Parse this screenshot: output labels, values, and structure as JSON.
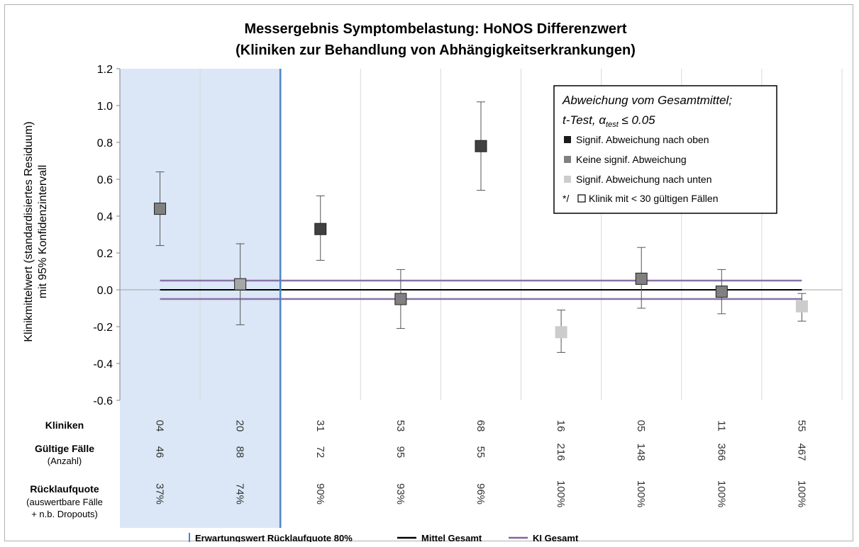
{
  "chart_data": {
    "type": "scatter",
    "title": [
      "Messergebnis Symptombelastung: HoNOS Differenzwert",
      "(Kliniken zur Behandlung von Abhängigkeitserkrankungen)"
    ],
    "ylabel": [
      "Klinikmittelwert (standardisiertes Residuum)",
      "mit 95% Konfidenzintervall"
    ],
    "ylim": [
      -0.6,
      1.2
    ],
    "yticks": [
      "1.2",
      "1.0",
      "0.8",
      "0.6",
      "0.4",
      "0.2",
      "0.0",
      "-0.2",
      "-0.4",
      "-0.6"
    ],
    "ytick_values": [
      1.2,
      1.0,
      0.8,
      0.6,
      0.4,
      0.2,
      0.0,
      -0.2,
      -0.4,
      -0.6
    ],
    "mean_total": 0.0,
    "ci_total": [
      -0.05,
      0.05
    ],
    "shaded_categories": 2,
    "points": [
      {
        "klinik": "04",
        "faelle": "46",
        "quote": "37%",
        "value": 0.44,
        "low": 0.24,
        "high": 0.64,
        "color": "#808080"
      },
      {
        "klinik": "20",
        "faelle": "88",
        "quote": "74%",
        "value": 0.03,
        "low": -0.19,
        "high": 0.25,
        "color": "#a6a6a6"
      },
      {
        "klinik": "31",
        "faelle": "72",
        "quote": "90%",
        "value": 0.33,
        "low": 0.16,
        "high": 0.51,
        "color": "#404040"
      },
      {
        "klinik": "53",
        "faelle": "95",
        "quote": "93%",
        "value": -0.05,
        "low": -0.21,
        "high": 0.11,
        "color": "#808080"
      },
      {
        "klinik": "68",
        "faelle": "55",
        "quote": "96%",
        "value": 0.78,
        "low": 0.54,
        "high": 1.02,
        "color": "#404040"
      },
      {
        "klinik": "16",
        "faelle": "216",
        "quote": "100%",
        "value": -0.23,
        "low": -0.34,
        "high": -0.11,
        "color": "#cccccc"
      },
      {
        "klinik": "05",
        "faelle": "148",
        "quote": "100%",
        "value": 0.06,
        "low": -0.1,
        "high": 0.23,
        "color": "#808080"
      },
      {
        "klinik": "11",
        "faelle": "366",
        "quote": "100%",
        "value": -0.01,
        "low": -0.13,
        "high": 0.11,
        "color": "#808080"
      },
      {
        "klinik": "55",
        "faelle": "467",
        "quote": "100%",
        "value": -0.09,
        "low": -0.17,
        "high": -0.02,
        "color": "#cccccc"
      }
    ],
    "row_labels": {
      "kliniken": "Kliniken",
      "faelle": "Gültige Fälle",
      "faelle_sub": "(Anzahl)",
      "quote": "Rücklaufquote",
      "quote_sub1": "(auswertbare Fälle",
      "quote_sub2": "+ n.b. Dropouts)"
    },
    "legend": {
      "title1": "Abweichung vom Gesamtmittel;",
      "title2_prefix": "t-Test, α",
      "title2_sub": "test",
      "title2_suffix": " ≤ 0.05",
      "items": [
        {
          "label": "Signif. Abweichung nach oben",
          "color": "#1a1a1a"
        },
        {
          "label": "Keine signif. Abweichung",
          "color": "#808080"
        },
        {
          "label": "Signif. Abweichung nach unten",
          "color": "#cccccc"
        },
        {
          "label": "Klinik mit < 30 gültigen Fällen",
          "prefix": "*/",
          "color": "#ffffff"
        }
      ]
    },
    "bottom_legend": [
      {
        "label": "Erwartungswert Rücklaufquote 80%",
        "color": "#4a86c8",
        "kind": "vbar"
      },
      {
        "label": "Mittel Gesamt",
        "color": "#000000",
        "kind": "line"
      },
      {
        "label": "KI Gesamt",
        "color": "#8064a2",
        "kind": "line"
      }
    ],
    "colors": {
      "shade": "#dbe7f6",
      "expectation_line": "#4a86c8",
      "mean_line": "#000000",
      "ci_line": "#8a72a8",
      "grid": "#d9d9d9"
    }
  }
}
